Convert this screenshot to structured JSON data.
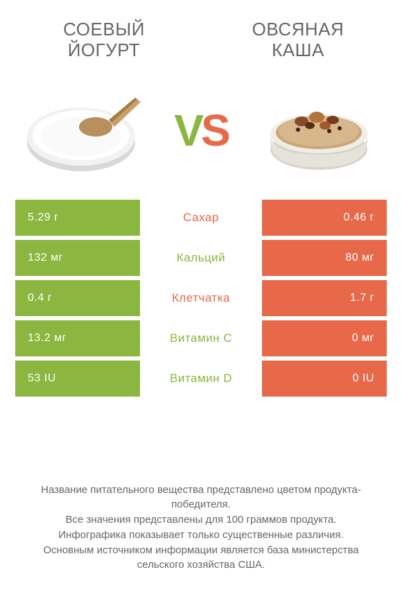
{
  "colors": {
    "green": "#8bb63f",
    "orange": "#e8684a",
    "text": "#666666",
    "cell_text": "#ffffff"
  },
  "left_title": "СОЕВЫЙ ЙОГУРТ",
  "right_title": "ОВСЯНАЯ КАША",
  "vs_v": "V",
  "vs_s": "S",
  "rows": [
    {
      "left": "5.29 г",
      "label": "Сахар",
      "right": "0.46 г",
      "winner": "right"
    },
    {
      "left": "132 мг",
      "label": "Кальций",
      "right": "80 мг",
      "winner": "left"
    },
    {
      "left": "0.4 г",
      "label": "Клетчатка",
      "right": "1.7 г",
      "winner": "right"
    },
    {
      "left": "13.2 мг",
      "label": "Витамин C",
      "right": "0 мг",
      "winner": "left"
    },
    {
      "left": "53 IU",
      "label": "Витамин D",
      "right": "0 IU",
      "winner": "left"
    }
  ],
  "footer_lines": [
    "Название питательного вещества представлено цветом продукта-победителя.",
    "Все значения представлены для 100 граммов продукта.",
    "Инфографика показывает только существенные различия.",
    "Основным источником информации является база министерства сельского хозяйства США."
  ]
}
